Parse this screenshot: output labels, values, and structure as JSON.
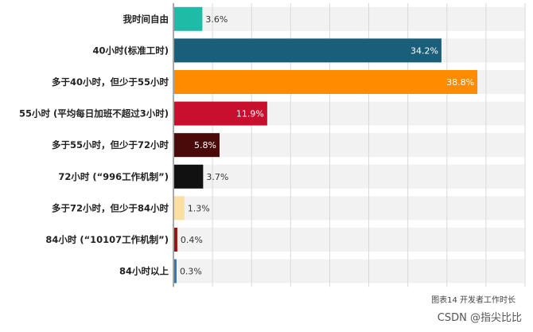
{
  "caption": "图表14 开发者工作时长",
  "watermark": "CSDN @指尖比比",
  "chart_data": {
    "type": "bar",
    "orientation": "horizontal",
    "title": "",
    "xlabel": "",
    "ylabel": "",
    "xlim": [
      0,
      45
    ],
    "grid": true,
    "categories": [
      "我时间自由",
      "40小时(标准工时)",
      "多于40小时，但少于55小时",
      "55小时 (平均每日加班不超过3小时)",
      "多于55小时，但少于72小时",
      "72小时 (“996工作机制”)",
      "多于72小时，但少于84小时",
      "84小时 (“10107工作机制”)",
      "84小时以上"
    ],
    "values": [
      3.6,
      34.2,
      38.8,
      11.9,
      5.8,
      3.7,
      1.3,
      0.4,
      0.3
    ],
    "value_labels": [
      "3.6%",
      "34.2%",
      "38.8%",
      "11.9%",
      "5.8%",
      "3.7%",
      "1.3%",
      "0.4%",
      "0.3%"
    ],
    "colors": [
      "#1fbba6",
      "#1a5f7a",
      "#ff8c00",
      "#c8102e",
      "#4a0a0a",
      "#111111",
      "#f9e0a0",
      "#a01010",
      "#2a7ab5"
    ]
  }
}
